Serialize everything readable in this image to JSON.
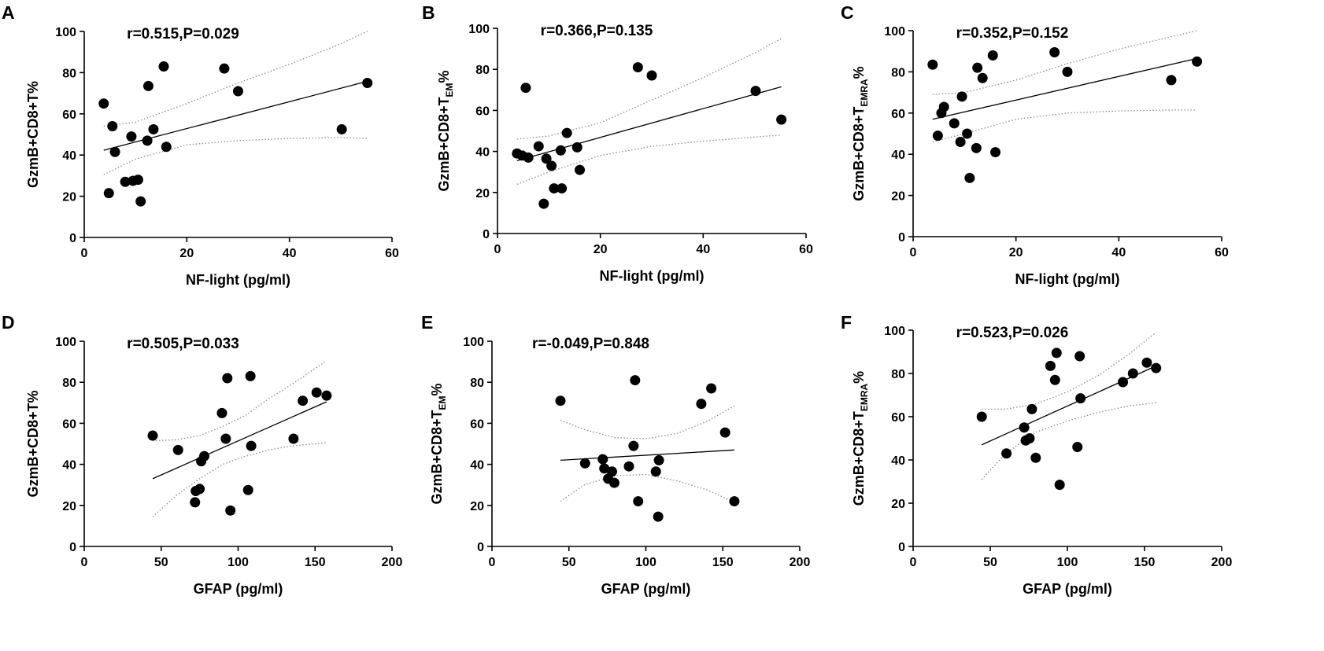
{
  "chart_data": [
    {
      "type": "scatter",
      "panel": "A",
      "annotation": "r=0.515,P=0.029",
      "xlabel": "NF-light (pg/ml)",
      "ylabel": {
        "main": "GzmB+CD8+T%",
        "sub": ""
      },
      "xlim": [
        0,
        60
      ],
      "ylim": [
        0,
        100
      ],
      "xticks": [
        "0",
        "20",
        "40",
        "60"
      ],
      "yticks": [
        "0",
        "20",
        "40",
        "60",
        "80",
        "100"
      ],
      "points": [
        [
          3.8,
          65
        ],
        [
          4.8,
          21.5
        ],
        [
          5.5,
          54
        ],
        [
          6,
          41.5
        ],
        [
          8,
          27
        ],
        [
          9.2,
          49
        ],
        [
          9.5,
          27.5
        ],
        [
          10.5,
          28
        ],
        [
          11,
          17.5
        ],
        [
          12.3,
          47
        ],
        [
          12.5,
          73.5
        ],
        [
          13.5,
          52.5
        ],
        [
          15.5,
          83
        ],
        [
          16,
          44
        ],
        [
          27.3,
          82
        ],
        [
          30,
          71
        ],
        [
          50.2,
          52.5
        ],
        [
          55.2,
          75
        ]
      ],
      "fit": [
        [
          3.8,
          42.3
        ],
        [
          55.2,
          75.8
        ]
      ],
      "ci_upper": [
        [
          3.8,
          54
        ],
        [
          10,
          56
        ],
        [
          20,
          65
        ],
        [
          30,
          75
        ],
        [
          40,
          84
        ],
        [
          50,
          94
        ],
        [
          55.2,
          100
        ]
      ],
      "ci_lower": [
        [
          3.8,
          30.5
        ],
        [
          10,
          38
        ],
        [
          20,
          45
        ],
        [
          30,
          47
        ],
        [
          40,
          48
        ],
        [
          50,
          48.5
        ],
        [
          55.2,
          48
        ]
      ]
    },
    {
      "type": "scatter",
      "panel": "B",
      "annotation": "r=0.366,P=0.135",
      "xlabel": "NF-light (pg/ml)",
      "ylabel": {
        "main": "GzmB+CD8+T",
        "sub": "EM",
        "suffix": "%"
      },
      "xlim": [
        0,
        60
      ],
      "ylim": [
        0,
        100
      ],
      "xticks": [
        "0",
        "20",
        "40",
        "60"
      ],
      "yticks": [
        "0",
        "20",
        "40",
        "60",
        "80",
        "100"
      ],
      "points": [
        [
          3.8,
          39
        ],
        [
          4.8,
          38
        ],
        [
          5.5,
          71
        ],
        [
          6,
          37
        ],
        [
          8,
          42.5
        ],
        [
          9,
          14.5
        ],
        [
          9.5,
          36.5
        ],
        [
          10.5,
          33
        ],
        [
          11,
          22
        ],
        [
          12.3,
          40.5
        ],
        [
          12.5,
          22
        ],
        [
          13.5,
          49
        ],
        [
          15.5,
          42
        ],
        [
          16,
          31
        ],
        [
          27.3,
          81
        ],
        [
          30,
          77
        ],
        [
          50.2,
          69.5
        ],
        [
          55.2,
          55.5
        ]
      ],
      "fit": [
        [
          3.8,
          35.5
        ],
        [
          55.2,
          71.5
        ]
      ],
      "ci_upper": [
        [
          3.8,
          46
        ],
        [
          10,
          47.5
        ],
        [
          20,
          54
        ],
        [
          30,
          65
        ],
        [
          40,
          76
        ],
        [
          50,
          88
        ],
        [
          55.2,
          95
        ]
      ],
      "ci_lower": [
        [
          3.8,
          24
        ],
        [
          10,
          30
        ],
        [
          20,
          38
        ],
        [
          30,
          42.5
        ],
        [
          40,
          45
        ],
        [
          50,
          47
        ],
        [
          55.2,
          48
        ]
      ]
    },
    {
      "type": "scatter",
      "panel": "C",
      "annotation": "r=0.352,P=0.152",
      "xlabel": "NF-light (pg/ml)",
      "ylabel": {
        "main": "GzmB+CD8+T",
        "sub": "EMRA",
        "suffix": "%"
      },
      "xlim": [
        0,
        60
      ],
      "ylim": [
        0,
        100
      ],
      "xticks": [
        "0",
        "20",
        "40",
        "60"
      ],
      "yticks": [
        "0",
        "20",
        "40",
        "60",
        "80",
        "100"
      ],
      "points": [
        [
          3.8,
          83.5
        ],
        [
          4.8,
          49
        ],
        [
          5.5,
          60
        ],
        [
          6,
          63
        ],
        [
          8,
          55
        ],
        [
          9.2,
          46
        ],
        [
          9.5,
          68
        ],
        [
          10.5,
          50
        ],
        [
          11,
          28.5
        ],
        [
          12.3,
          43
        ],
        [
          12.5,
          82
        ],
        [
          13.5,
          77
        ],
        [
          15.5,
          88
        ],
        [
          16,
          41
        ],
        [
          27.5,
          89.5
        ],
        [
          30,
          80
        ],
        [
          50.2,
          76
        ],
        [
          55.2,
          85
        ]
      ],
      "fit": [
        [
          3.8,
          57
        ],
        [
          55.2,
          86.5
        ]
      ],
      "ci_upper": [
        [
          3.8,
          69
        ],
        [
          10,
          70
        ],
        [
          20,
          76
        ],
        [
          30,
          84
        ],
        [
          40,
          91
        ],
        [
          50,
          97
        ],
        [
          55.2,
          100
        ]
      ],
      "ci_lower": [
        [
          3.8,
          46
        ],
        [
          10,
          50
        ],
        [
          20,
          57
        ],
        [
          30,
          60
        ],
        [
          40,
          61
        ],
        [
          50,
          61.5
        ],
        [
          55.2,
          61.5
        ]
      ]
    },
    {
      "type": "scatter",
      "panel": "D",
      "annotation": "r=0.505,P=0.033",
      "xlabel": "GFAP (pg/ml)",
      "ylabel": {
        "main": "GzmB+CD8+T%",
        "sub": ""
      },
      "xlim": [
        0,
        200
      ],
      "ylim": [
        0,
        100
      ],
      "xticks": [
        "0",
        "50",
        "100",
        "150",
        "200"
      ],
      "yticks": [
        "0",
        "20",
        "40",
        "60",
        "80",
        "100"
      ],
      "points": [
        [
          44.5,
          54
        ],
        [
          61,
          47
        ],
        [
          72,
          21.5
        ],
        [
          72.5,
          27
        ],
        [
          75,
          28
        ],
        [
          76,
          41.5
        ],
        [
          78,
          44
        ],
        [
          89.5,
          65
        ],
        [
          92,
          52.5
        ],
        [
          93,
          82
        ],
        [
          95,
          17.5
        ],
        [
          106.5,
          27.5
        ],
        [
          108,
          83
        ],
        [
          108.5,
          49
        ],
        [
          136,
          52.5
        ],
        [
          142,
          71
        ],
        [
          151,
          75
        ],
        [
          157.5,
          73.5
        ]
      ],
      "fit": [
        [
          44.5,
          33
        ],
        [
          157.5,
          70.5
        ]
      ],
      "ci_upper": [
        [
          44.5,
          51.5
        ],
        [
          60,
          52
        ],
        [
          75,
          54
        ],
        [
          90,
          58.5
        ],
        [
          105,
          64
        ],
        [
          120,
          72
        ],
        [
          135,
          79
        ],
        [
          157.5,
          90.5
        ]
      ],
      "ci_lower": [
        [
          44.5,
          14.5
        ],
        [
          60,
          25
        ],
        [
          75,
          33
        ],
        [
          90,
          40
        ],
        [
          105,
          44
        ],
        [
          120,
          47
        ],
        [
          135,
          49
        ],
        [
          157.5,
          50.5
        ]
      ]
    },
    {
      "type": "scatter",
      "panel": "E",
      "annotation": "r=-0.049,P=0.848",
      "xlabel": "GFAP (pg/ml)",
      "ylabel": {
        "main": "GzmB+CD8+T",
        "sub": "EM",
        "suffix": "%"
      },
      "xlim": [
        0,
        200
      ],
      "ylim": [
        0,
        100
      ],
      "xticks": [
        "0",
        "50",
        "100",
        "150",
        "200"
      ],
      "yticks": [
        "0",
        "20",
        "40",
        "60",
        "80",
        "100"
      ],
      "points": [
        [
          44.5,
          71
        ],
        [
          60.5,
          40.5
        ],
        [
          72,
          42.5
        ],
        [
          73,
          38
        ],
        [
          75.5,
          33
        ],
        [
          78,
          36.5
        ],
        [
          79.5,
          31
        ],
        [
          89,
          39
        ],
        [
          92,
          49
        ],
        [
          93,
          81
        ],
        [
          95,
          22
        ],
        [
          106.5,
          36.5
        ],
        [
          108,
          14.5
        ],
        [
          108.5,
          42
        ],
        [
          136,
          69.5
        ],
        [
          142.5,
          77
        ],
        [
          151.5,
          55.5
        ],
        [
          157.5,
          22
        ]
      ],
      "fit": [
        [
          44.5,
          42
        ],
        [
          157.5,
          47
        ]
      ],
      "ci_upper": [
        [
          44.5,
          61.5
        ],
        [
          60,
          57
        ],
        [
          80,
          53
        ],
        [
          100,
          52.5
        ],
        [
          120,
          55
        ],
        [
          140,
          61
        ],
        [
          157.5,
          68.5
        ]
      ],
      "ci_lower": [
        [
          44.5,
          22
        ],
        [
          60,
          30
        ],
        [
          80,
          34.5
        ],
        [
          100,
          35
        ],
        [
          120,
          32
        ],
        [
          140,
          27.5
        ],
        [
          157.5,
          21.5
        ]
      ]
    },
    {
      "type": "scatter",
      "panel": "F",
      "annotation": "r=0.523,P=0.026",
      "xlabel": "GFAP (pg/ml)",
      "ylabel": {
        "main": "GzmB+CD8+T",
        "sub": "EMRA",
        "suffix": "%"
      },
      "xlim": [
        0,
        200
      ],
      "ylim": [
        0,
        100
      ],
      "xticks": [
        "0",
        "50",
        "100",
        "150",
        "200"
      ],
      "yticks": [
        "0",
        "20",
        "40",
        "60",
        "80",
        "100"
      ],
      "points": [
        [
          44.5,
          60
        ],
        [
          60.5,
          43
        ],
        [
          72,
          55
        ],
        [
          73,
          49
        ],
        [
          75.5,
          50
        ],
        [
          77,
          63.5
        ],
        [
          79.5,
          41
        ],
        [
          89,
          83.5
        ],
        [
          92,
          77
        ],
        [
          93,
          89.5
        ],
        [
          95,
          28.5
        ],
        [
          106.5,
          46
        ],
        [
          108,
          88
        ],
        [
          108.5,
          68.5
        ],
        [
          136,
          76
        ],
        [
          142.5,
          80
        ],
        [
          151.5,
          85
        ],
        [
          157.5,
          82.5
        ]
      ],
      "fit": [
        [
          44.5,
          47
        ],
        [
          157.5,
          83.5
        ]
      ],
      "ci_upper": [
        [
          44.5,
          63.5
        ],
        [
          60,
          63.5
        ],
        [
          80,
          66
        ],
        [
          100,
          71.5
        ],
        [
          120,
          79
        ],
        [
          140,
          89
        ],
        [
          157.5,
          99
        ]
      ],
      "ci_lower": [
        [
          44.5,
          31
        ],
        [
          60,
          43
        ],
        [
          80,
          53
        ],
        [
          100,
          58
        ],
        [
          120,
          62
        ],
        [
          140,
          65
        ],
        [
          157.5,
          66.5
        ]
      ]
    }
  ]
}
